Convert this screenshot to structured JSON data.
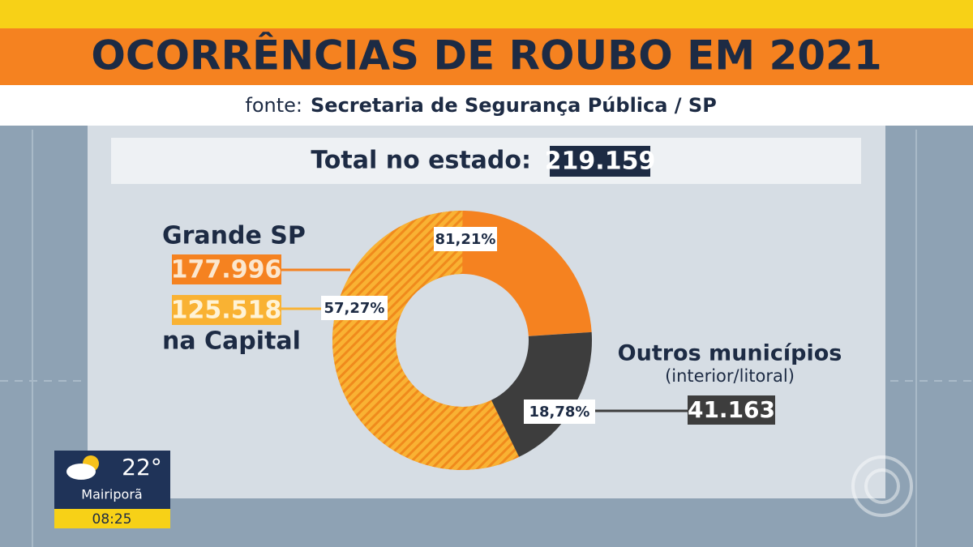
{
  "chart_data": {
    "type": "donut",
    "title": "OCORRÊNCIAS DE ROUBO EM 2021",
    "source_label": "fonte:",
    "source": "Secretaria de Segurança Pública / SP",
    "total_label": "Total no estado:",
    "total": "219.159",
    "series": [
      {
        "name": "Grande SP",
        "color": "#f58220",
        "values": [
          81.21
        ],
        "value_labels": [
          "81,21%"
        ],
        "count": "177.996"
      },
      {
        "name": "na Capital",
        "color": "#f9b233",
        "values": [
          57.27
        ],
        "value_labels": [
          "57,27%"
        ],
        "count": "125.518"
      },
      {
        "name": "Outros municípios",
        "subtitle": "(interior/litoral)",
        "color": "#3d3d3d",
        "values": [
          18.78
        ],
        "value_labels": [
          "18,78%"
        ],
        "count": "41.163"
      }
    ]
  },
  "overlay": {
    "temperature": "22°",
    "city": "Mairiporã",
    "time": "08:25"
  }
}
